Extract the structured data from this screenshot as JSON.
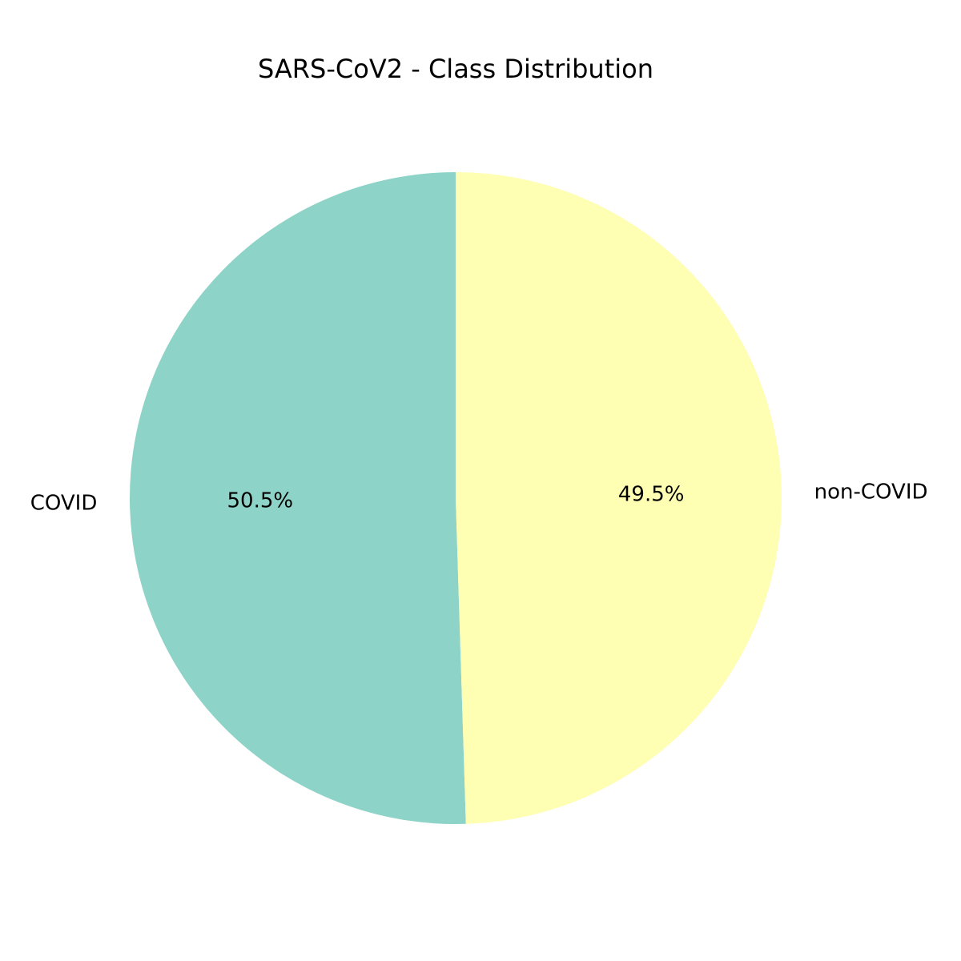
{
  "chart_data": {
    "type": "pie",
    "title": "SARS-CoV2 - Class Distribution",
    "categories": [
      "COVID",
      "non-COVID"
    ],
    "values": [
      50.5,
      49.5
    ],
    "value_labels": [
      "50.5%",
      "49.5%"
    ],
    "colors": [
      "#8ed3c7",
      "#ffffb3"
    ],
    "start_angle_deg": 90,
    "direction": "counterclockwise"
  }
}
